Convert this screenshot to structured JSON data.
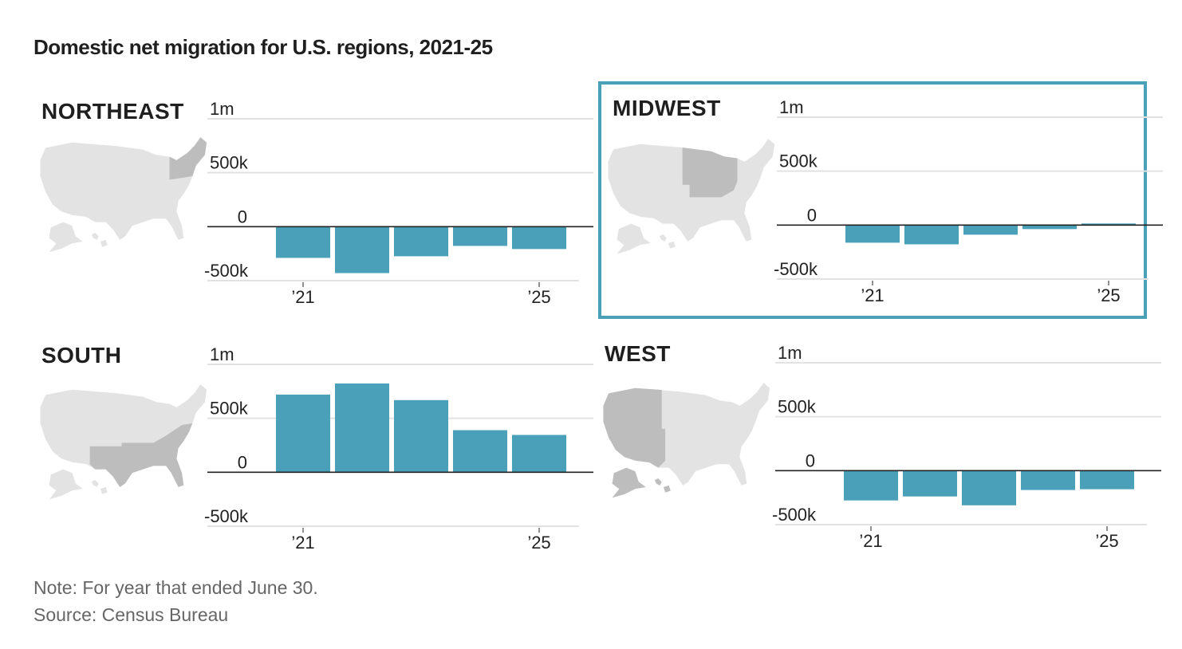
{
  "title": "Domestic net migration for U.S. regions, 2021-25",
  "note": "Note: For year that ended June 30.",
  "source": "Source: Census Bureau",
  "colors": {
    "bar": "#4aa0b8",
    "highlight_border": "#4aa0b6",
    "map_base": "#e3e3e3",
    "map_region": "#bdbdbd",
    "grid": "#e2e2e2",
    "zero_line": "#222222"
  },
  "chart_data": [
    {
      "type": "bar",
      "title": "NORTHEAST",
      "highlighted": false,
      "categories": [
        "2021",
        "2022",
        "2023",
        "2024",
        "2025"
      ],
      "values": [
        -289000,
        -430000,
        -274000,
        -178000,
        -207000
      ],
      "ylim": [
        -500000,
        1000000
      ],
      "yticks": [
        {
          "value": 1000000,
          "label": "1m"
        },
        {
          "value": 500000,
          "label": "500k"
        },
        {
          "value": 0,
          "label": "0"
        },
        {
          "value": -500000,
          "label": "-500k"
        }
      ],
      "xticks": [
        {
          "index": 0,
          "label": "’21"
        },
        {
          "index": 4,
          "label": "’25"
        }
      ],
      "xlabel": "",
      "ylabel": "",
      "grid": true
    },
    {
      "type": "bar",
      "title": "MIDWEST",
      "highlighted": true,
      "categories": [
        "2021",
        "2022",
        "2023",
        "2024",
        "2025"
      ],
      "values": [
        -163000,
        -178000,
        -89000,
        -37000,
        15000
      ],
      "ylim": [
        -500000,
        1000000
      ],
      "yticks": [
        {
          "value": 1000000,
          "label": "1m"
        },
        {
          "value": 500000,
          "label": "500k"
        },
        {
          "value": 0,
          "label": "0"
        },
        {
          "value": -500000,
          "label": "-500k"
        }
      ],
      "xticks": [
        {
          "index": 0,
          "label": "’21"
        },
        {
          "index": 4,
          "label": "’25"
        }
      ],
      "xlabel": "",
      "ylabel": "",
      "grid": true
    },
    {
      "type": "bar",
      "title": "SOUTH",
      "highlighted": false,
      "categories": [
        "2021",
        "2022",
        "2023",
        "2024",
        "2025"
      ],
      "values": [
        720000,
        823000,
        669000,
        390000,
        346000
      ],
      "ylim": [
        -500000,
        1000000
      ],
      "yticks": [
        {
          "value": 1000000,
          "label": "1m"
        },
        {
          "value": 500000,
          "label": "500k"
        },
        {
          "value": 0,
          "label": "0"
        },
        {
          "value": -500000,
          "label": "-500k"
        }
      ],
      "xticks": [
        {
          "index": 0,
          "label": "’21"
        },
        {
          "index": 4,
          "label": "’25"
        }
      ],
      "xlabel": "",
      "ylabel": "",
      "grid": true
    },
    {
      "type": "bar",
      "title": "WEST",
      "highlighted": false,
      "categories": [
        "2021",
        "2022",
        "2023",
        "2024",
        "2025"
      ],
      "values": [
        -276000,
        -239000,
        -321000,
        -179000,
        -172000
      ],
      "ylim": [
        -500000,
        1000000
      ],
      "yticks": [
        {
          "value": 1000000,
          "label": "1m"
        },
        {
          "value": 500000,
          "label": "500k"
        },
        {
          "value": 0,
          "label": "0"
        },
        {
          "value": -500000,
          "label": "-500k"
        }
      ],
      "xticks": [
        {
          "index": 0,
          "label": "’21"
        },
        {
          "index": 4,
          "label": "’25"
        }
      ],
      "xlabel": "",
      "ylabel": "",
      "grid": true
    }
  ]
}
